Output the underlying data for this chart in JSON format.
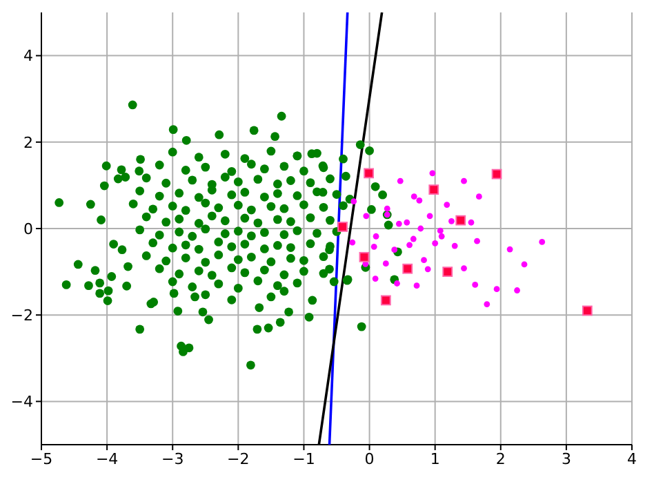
{
  "chart_data": {
    "type": "scatter",
    "xlim": [
      -5,
      4
    ],
    "ylim": [
      -5,
      5
    ],
    "xticks": [
      {
        "value": -5,
        "label": "−5"
      },
      {
        "value": -4,
        "label": "−4"
      },
      {
        "value": -3,
        "label": "−3"
      },
      {
        "value": -2,
        "label": "−2"
      },
      {
        "value": -1,
        "label": "−1"
      },
      0,
      1,
      2,
      3,
      4
    ],
    "yticks": [
      {
        "value": -4,
        "label": "−4"
      },
      {
        "value": -2,
        "label": "−2"
      },
      0,
      2,
      4
    ],
    "grid": true,
    "series": [
      {
        "type": "scatter",
        "marker": "circle",
        "color": "#008000",
        "x": [
          -3.61,
          -4.73,
          -4.25,
          -2.99,
          -4.09,
          -4.01,
          -4.04,
          -3.78,
          -3.83,
          -3.72,
          -3.49,
          -3.51,
          -4.44,
          -4.62,
          -4.18,
          -4.28,
          -4.11,
          -3.93,
          -3.98,
          -4.11,
          -3.99,
          -3.7,
          -3.9,
          -3.68,
          -3.77,
          -3.5,
          -3.33,
          -3.29,
          -2.87,
          -2.75,
          -2.84,
          -2.92,
          -2.45,
          -2.54,
          -2.98,
          -2.66,
          -1.34,
          -1.76,
          -1.44,
          -2.79,
          -2.29,
          -1.81,
          -1.71,
          -1.54,
          -1.23,
          -1.36,
          -0.92,
          -0.12,
          -0.88,
          -0.71,
          -1.1,
          -0.61,
          -0.34,
          -0.87,
          -1.68,
          -1.3,
          -0.61,
          -0.14,
          0.0,
          -0.36,
          -0.4,
          0.09,
          0.2,
          0.27,
          0.29,
          0.43,
          0.38,
          -0.33,
          -0.54,
          -0.06,
          -0.71,
          0.03,
          -0.3,
          -3.0,
          -2.6,
          -2.2,
          -1.9,
          -1.5,
          -1.1,
          -0.8,
          -3.2,
          -2.8,
          -2.5,
          -2.1,
          -1.8,
          -1.6,
          -1.3,
          -1.0,
          -0.7,
          -3.4,
          -3.1,
          -2.7,
          -2.4,
          -2.2,
          -2.0,
          -1.7,
          -1.4,
          -1.2,
          -0.9,
          -0.6,
          -3.5,
          -3.2,
          -2.9,
          -2.6,
          -2.4,
          -2.1,
          -1.9,
          -1.6,
          -1.4,
          -1.1,
          -0.8,
          -0.5,
          -3.6,
          -3.3,
          -3.0,
          -2.8,
          -2.5,
          -2.3,
          -2.0,
          -1.8,
          -1.5,
          -1.3,
          -1.0,
          -0.7,
          -0.4,
          -3.4,
          -3.1,
          -2.9,
          -2.6,
          -2.4,
          -2.2,
          -1.9,
          -1.7,
          -1.4,
          -1.2,
          -0.9,
          -0.6,
          -3.5,
          -3.2,
          -2.9,
          -2.7,
          -2.5,
          -2.2,
          -2.0,
          -1.8,
          -1.6,
          -1.3,
          -1.1,
          -0.8,
          -0.5,
          -3.3,
          -3.0,
          -2.8,
          -2.6,
          -2.3,
          -2.1,
          -1.9,
          -1.6,
          -1.4,
          -1.2,
          -0.9,
          -0.6,
          -3.4,
          -3.1,
          -2.8,
          -2.5,
          -2.3,
          -2.0,
          -1.8,
          -1.5,
          -1.2,
          -1.0,
          -0.7,
          -3.2,
          -2.9,
          -2.6,
          -2.4,
          -2.1,
          -1.9,
          -1.6,
          -1.3,
          -1.0,
          -0.7,
          -3.0,
          -2.7,
          -2.3,
          -2.0,
          -1.7,
          -1.4,
          -1.1,
          -2.5,
          -2.1,
          -1.5
        ],
        "values": [
          2.86,
          0.6,
          0.56,
          2.29,
          0.2,
          1.45,
          0.99,
          1.36,
          1.15,
          1.19,
          1.6,
          1.33,
          -0.83,
          -1.3,
          -0.97,
          -1.32,
          -1.26,
          -1.11,
          -1.44,
          -1.5,
          -1.67,
          -1.33,
          -0.36,
          -0.88,
          -0.49,
          -2.33,
          -1.74,
          -1.7,
          -2.72,
          -2.76,
          -2.85,
          -1.91,
          -2.11,
          -1.93,
          -1.5,
          -1.58,
          2.6,
          2.27,
          2.13,
          2.04,
          2.17,
          -3.16,
          -2.33,
          -2.3,
          -1.93,
          -2.17,
          -2.05,
          -2.27,
          1.73,
          1.45,
          1.68,
          -0.94,
          -1.2,
          -1.66,
          -1.83,
          -1.45,
          -0.49,
          1.94,
          1.8,
          1.21,
          1.61,
          0.97,
          0.78,
          0.32,
          0.08,
          -0.54,
          -1.18,
          -1.18,
          -1.23,
          -0.9,
          0.84,
          0.44,
          0.68,
          1.77,
          1.65,
          1.72,
          1.62,
          1.79,
          1.68,
          1.74,
          1.47,
          1.35,
          1.42,
          1.32,
          1.49,
          1.38,
          1.44,
          1.33,
          1.41,
          1.17,
          1.05,
          1.12,
          1.02,
          1.19,
          1.08,
          1.14,
          1.03,
          1.11,
          1.06,
          1.15,
          0.87,
          0.75,
          0.82,
          0.72,
          0.89,
          0.78,
          0.84,
          0.73,
          0.81,
          0.76,
          0.85,
          0.79,
          0.57,
          0.45,
          0.52,
          0.42,
          0.59,
          0.48,
          0.54,
          0.43,
          0.51,
          0.46,
          0.55,
          0.49,
          0.53,
          0.27,
          0.15,
          0.22,
          0.12,
          0.29,
          0.18,
          0.24,
          0.13,
          0.21,
          0.16,
          0.25,
          0.19,
          -0.03,
          -0.15,
          -0.08,
          -0.18,
          -0.01,
          -0.12,
          -0.06,
          -0.17,
          -0.09,
          -0.14,
          -0.05,
          -0.11,
          -0.07,
          -0.33,
          -0.45,
          -0.38,
          -0.48,
          -0.31,
          -0.42,
          -0.36,
          -0.47,
          -0.39,
          -0.44,
          -0.35,
          -0.41,
          -0.63,
          -0.75,
          -0.68,
          -0.78,
          -0.61,
          -0.72,
          -0.66,
          -0.77,
          -0.69,
          -0.74,
          -0.65,
          -0.93,
          -1.05,
          -0.98,
          -1.08,
          -0.91,
          -1.02,
          -0.96,
          -1.07,
          -0.99,
          -1.04,
          -1.23,
          -1.35,
          -1.28,
          -1.38,
          -1.21,
          -1.32,
          -1.26,
          -1.53,
          -1.65,
          -1.58
        ]
      },
      {
        "type": "scatter",
        "marker": "circle",
        "color": "#ff00ff",
        "x": [
          0.47,
          0.96,
          1.44,
          0.68,
          0.76,
          1.18,
          1.67,
          0.27,
          0.27,
          0.92,
          -0.05,
          0.45,
          0.57,
          1.25,
          1.55,
          0.78,
          1.08,
          1.1,
          0.1,
          0.67,
          -0.26,
          1.0,
          1.64,
          0.61,
          1.3,
          0.07,
          0.38,
          2.14,
          2.63,
          0.83,
          0.25,
          0.89,
          1.44,
          2.36,
          0.09,
          0.42,
          0.72,
          1.61,
          1.94,
          2.25,
          1.79,
          -0.06,
          -0.24
        ],
        "values": [
          1.1,
          1.28,
          1.1,
          0.74,
          0.65,
          0.55,
          0.74,
          0.46,
          0.32,
          0.29,
          0.29,
          0.11,
          0.14,
          0.17,
          0.14,
          0.0,
          -0.05,
          -0.18,
          -0.18,
          -0.24,
          -0.32,
          -0.34,
          -0.29,
          -0.38,
          -0.4,
          -0.42,
          -0.49,
          -0.48,
          -0.31,
          -0.73,
          -0.81,
          -0.94,
          -0.92,
          -0.83,
          -1.16,
          -1.27,
          -1.32,
          -1.3,
          -1.4,
          -1.43,
          -1.75,
          -0.82,
          0.63
        ]
      },
      {
        "type": "scatter",
        "marker": "square",
        "color": "#ff0040",
        "x": [
          -0.01,
          1.94,
          0.98,
          1.39,
          -0.41,
          -0.08,
          0.58,
          1.19,
          0.25,
          3.32
        ],
        "values": [
          1.28,
          1.26,
          0.9,
          0.19,
          0.04,
          -0.66,
          -0.93,
          -1.0,
          -1.66,
          -1.9
        ]
      },
      {
        "type": "line",
        "marker": "none",
        "color": "#0000ff",
        "x": [
          -0.335,
          -0.61
        ],
        "values": [
          5,
          -5
        ]
      },
      {
        "type": "line",
        "marker": "none",
        "color": "#000000",
        "x": [
          0.19,
          -0.77
        ],
        "values": [
          5,
          -5
        ]
      }
    ]
  }
}
